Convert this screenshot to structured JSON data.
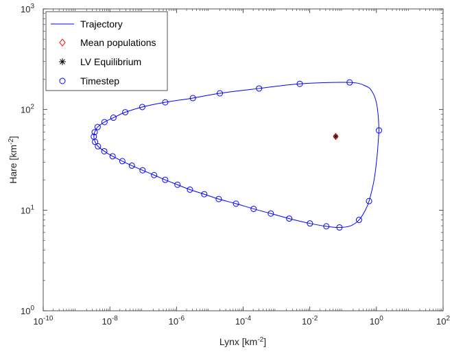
{
  "chart_data": {
    "type": "line",
    "xlabel": "Lynx [km",
    "xlabel_sup": "-2",
    "xlabel_end": "]",
    "ylabel": "Hare [km",
    "ylabel_sup": "-2",
    "ylabel_end": "]",
    "x_scale": "log",
    "y_scale": "log",
    "xlim": [
      1e-10,
      100
    ],
    "ylim": [
      1,
      1000
    ],
    "x_ticks": [
      {
        "base": "10",
        "exp": "-10",
        "value": 1e-10
      },
      {
        "base": "10",
        "exp": "-8",
        "value": 1e-08
      },
      {
        "base": "10",
        "exp": "-6",
        "value": 1e-06
      },
      {
        "base": "10",
        "exp": "-4",
        "value": 0.0001
      },
      {
        "base": "10",
        "exp": "-2",
        "value": 0.01
      },
      {
        "base": "10",
        "exp": "0",
        "value": 1
      },
      {
        "base": "10",
        "exp": "2",
        "value": 100
      }
    ],
    "y_ticks": [
      {
        "base": "10",
        "exp": "0",
        "value": 1
      },
      {
        "base": "10",
        "exp": "1",
        "value": 10
      },
      {
        "base": "10",
        "exp": "2",
        "value": 100
      },
      {
        "base": "10",
        "exp": "3",
        "value": 1000
      }
    ],
    "grid": false,
    "legend_position": "top-left",
    "series": [
      {
        "name": "Trajectory",
        "kind": "line",
        "color": "#0000ff",
        "points": [
          [
            1.19,
            62.0
          ],
          [
            1.13,
            87
          ],
          [
            0.98,
            120
          ],
          [
            0.75,
            150
          ],
          [
            0.5,
            170
          ],
          [
            0.157,
            186
          ],
          [
            0.005,
            180
          ],
          [
            0.0003,
            162
          ],
          [
            2e-05,
            145
          ],
          [
            3.1e-06,
            130
          ],
          [
            4.6e-07,
            118
          ],
          [
            9.4e-08,
            106
          ],
          [
            2.9e-08,
            94
          ],
          [
            1.28e-08,
            83
          ],
          [
            6.9e-09,
            75
          ],
          [
            4.3e-09,
            67
          ],
          [
            3.5e-09,
            59.5
          ],
          [
            3.3e-09,
            53.8
          ],
          [
            3.6e-09,
            47.7
          ],
          [
            4.4e-09,
            43.1
          ],
          [
            6.8e-09,
            38.5
          ],
          [
            1.21e-08,
            34.3
          ],
          [
            2.37e-08,
            30.7
          ],
          [
            4.58e-08,
            27.7
          ],
          [
            9.6e-08,
            24.9
          ],
          [
            2.13e-07,
            22.3
          ],
          [
            4.58e-07,
            20.0
          ],
          [
            1.07e-06,
            17.9
          ],
          [
            2.53e-06,
            16.0
          ],
          [
            6.8e-06,
            14.4
          ],
          [
            1.85e-05,
            12.9
          ],
          [
            6.1e-05,
            11.6
          ],
          [
            0.000206,
            10.3
          ],
          [
            0.000676,
            9.26
          ],
          [
            0.00241,
            8.25
          ],
          [
            0.0101,
            7.38
          ],
          [
            0.0314,
            6.91
          ],
          [
            0.0776,
            6.73
          ],
          [
            0.17,
            7.0
          ],
          [
            0.3,
            8.0
          ],
          [
            0.45,
            9.8
          ],
          [
            0.6,
            12.3
          ],
          [
            0.85,
            20
          ],
          [
            1.05,
            35
          ],
          [
            1.19,
            62.0
          ]
        ]
      },
      {
        "name": "Mean populations",
        "kind": "marker",
        "marker": "diamond",
        "color": "#ff0000",
        "points": [
          [
            0.06,
            54.0
          ]
        ]
      },
      {
        "name": "LV Equilibrium",
        "kind": "marker",
        "marker": "asterisk",
        "color": "#000000",
        "points": [
          [
            0.06,
            54.0
          ]
        ]
      },
      {
        "name": "Timestep",
        "kind": "marker",
        "marker": "circle",
        "color": "#0000ff",
        "points": [
          [
            1.19,
            62.0
          ],
          [
            0.157,
            186
          ],
          [
            0.005,
            180
          ],
          [
            0.0003,
            162
          ],
          [
            2e-05,
            145
          ],
          [
            3.1e-06,
            130
          ],
          [
            4.6e-07,
            118
          ],
          [
            9.4e-08,
            106
          ],
          [
            2.9e-08,
            94
          ],
          [
            1.28e-08,
            83
          ],
          [
            6.9e-09,
            75
          ],
          [
            4.3e-09,
            67
          ],
          [
            3.5e-09,
            59.5
          ],
          [
            3.3e-09,
            53.8
          ],
          [
            3.6e-09,
            47.7
          ],
          [
            4.4e-09,
            43.1
          ],
          [
            6.8e-09,
            38.5
          ],
          [
            1.21e-08,
            34.3
          ],
          [
            2.37e-08,
            30.7
          ],
          [
            4.58e-08,
            27.7
          ],
          [
            9.6e-08,
            24.9
          ],
          [
            2.13e-07,
            22.3
          ],
          [
            4.58e-07,
            20.0
          ],
          [
            1.07e-06,
            17.9
          ],
          [
            2.53e-06,
            16.0
          ],
          [
            6.8e-06,
            14.4
          ],
          [
            1.85e-05,
            12.9
          ],
          [
            6.1e-05,
            11.6
          ],
          [
            0.000206,
            10.3
          ],
          [
            0.000676,
            9.26
          ],
          [
            0.00241,
            8.25
          ],
          [
            0.0101,
            7.38
          ],
          [
            0.0314,
            6.91
          ],
          [
            0.0776,
            6.73
          ],
          [
            0.3,
            8.0
          ],
          [
            0.6,
            12.3
          ]
        ]
      }
    ]
  }
}
